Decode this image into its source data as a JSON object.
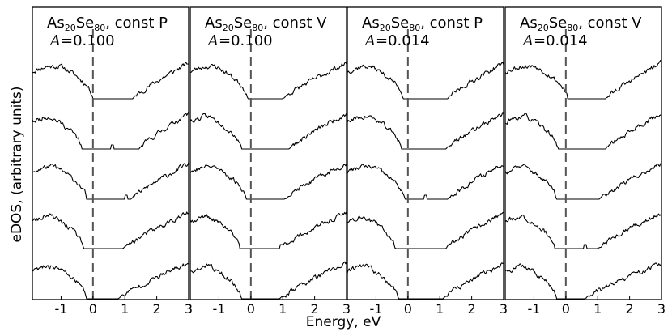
{
  "chart_data": {
    "type": "line",
    "xlabel": "Energy, eV",
    "ylabel": "eDOS, (arbitrary units)",
    "xlim": [
      -1.9,
      3.0
    ],
    "xticks": [
      -1,
      0,
      1,
      2,
      3
    ],
    "xtick_labels": [
      "-1",
      "0",
      "1",
      "2",
      "3"
    ],
    "panels": [
      {
        "title_base": "As",
        "title_sub1": "20",
        "title_mid": "Se",
        "title_sub2": "80",
        "title_suffix": ", const P",
        "param_symbol": "A",
        "param_value": "=0.100",
        "gaps": [
          [
            0.0,
            1.25
          ],
          [
            -0.35,
            1.45
          ],
          [
            -0.2,
            1.2
          ],
          [
            -0.3,
            0.95
          ],
          [
            -0.2,
            0.8
          ]
        ],
        "spikes": [
          [],
          [
            0.6
          ],
          [
            -0.3,
            1.05
          ],
          [],
          []
        ],
        "noise_seed": 11
      },
      {
        "title_base": "As",
        "title_sub1": "20",
        "title_mid": "Se",
        "title_sub2": "80",
        "title_suffix": ", const V",
        "param_symbol": "A",
        "param_value": "=0.100",
        "gaps": [
          [
            -0.1,
            1.0
          ],
          [
            -0.3,
            1.2
          ],
          [
            -0.15,
            1.05
          ],
          [
            -0.35,
            0.9
          ],
          [
            -0.3,
            0.9
          ]
        ],
        "spikes": [
          [],
          [],
          [],
          [
            0.95
          ],
          []
        ],
        "noise_seed": 23
      },
      {
        "title_base": "As",
        "title_sub1": "20",
        "title_mid": "Se",
        "title_sub2": "80",
        "title_suffix": ", const P",
        "param_symbol": "A",
        "param_value": "=0.014",
        "gaps": [
          [
            -0.15,
            1.25
          ],
          [
            -0.2,
            1.2
          ],
          [
            -0.1,
            1.25
          ],
          [
            -0.4,
            1.2
          ],
          [
            -0.3,
            1.1
          ]
        ],
        "spikes": [
          [],
          [],
          [
            0.55
          ],
          [],
          []
        ],
        "noise_seed": 37
      },
      {
        "title_base": "As",
        "title_sub1": "20",
        "title_mid": "Se",
        "title_sub2": "80",
        "title_suffix": ", const V",
        "param_symbol": "A",
        "param_value": "=0.014",
        "gaps": [
          [
            0.05,
            1.25
          ],
          [
            -0.25,
            1.25
          ],
          [
            -0.3,
            1.05
          ],
          [
            -0.35,
            1.0
          ],
          [
            -0.3,
            0.6
          ]
        ],
        "spikes": [
          [],
          [],
          [],
          [
            0.6
          ],
          []
        ],
        "noise_seed": 53
      }
    ]
  }
}
